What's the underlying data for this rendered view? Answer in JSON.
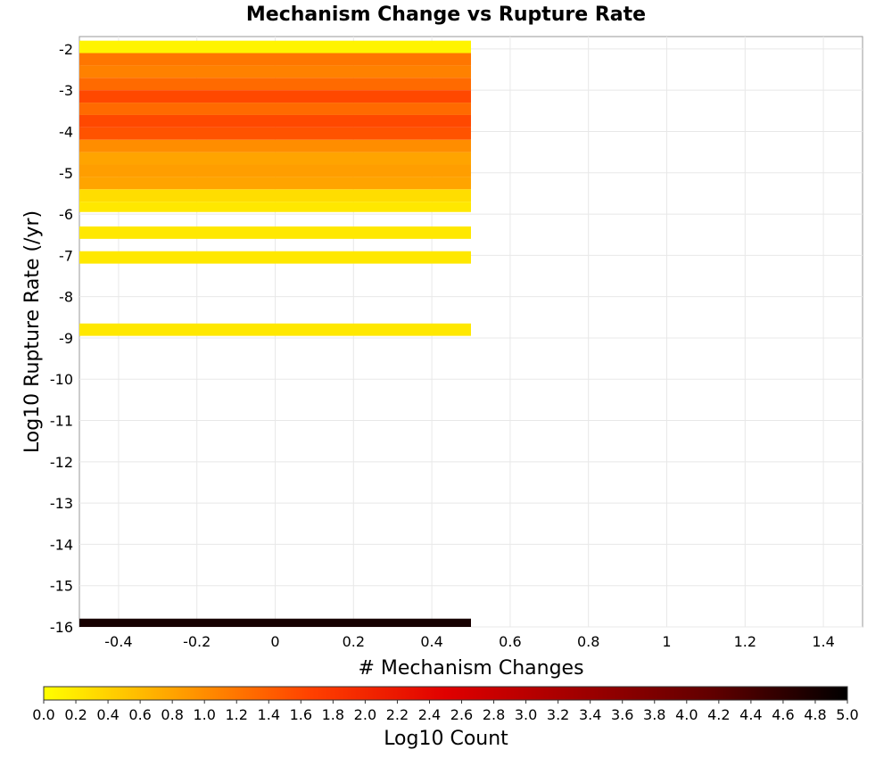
{
  "chart_data": {
    "type": "heatmap",
    "title": "Mechanism Change vs Rupture Rate",
    "xlabel": "# Mechanism Changes",
    "ylabel": "Log10 Rupture Rate (/yr)",
    "xlim": [
      -0.5,
      1.5
    ],
    "ylim": [
      -16,
      -1.7
    ],
    "x_ticks": [
      "-0.4",
      "-0.2",
      "0",
      "0.2",
      "0.4",
      "0.6",
      "0.8",
      "1",
      "1.2",
      "1.4"
    ],
    "y_ticks": [
      "-2",
      "-3",
      "-4",
      "-5",
      "-6",
      "-7",
      "-8",
      "-9",
      "-10",
      "-11",
      "-12",
      "-13",
      "-14",
      "-15",
      "-16"
    ],
    "grid": true,
    "bin_x": [
      -0.5,
      0.5
    ],
    "cells": [
      {
        "x": 0,
        "y_from": -2.1,
        "y_to": -1.8,
        "log10_count": 0.1
      },
      {
        "x": 0,
        "y_from": -2.4,
        "y_to": -2.1,
        "log10_count": 1.2
      },
      {
        "x": 0,
        "y_from": -2.7,
        "y_to": -2.4,
        "log10_count": 1.1
      },
      {
        "x": 0,
        "y_from": -3.0,
        "y_to": -2.7,
        "log10_count": 1.3
      },
      {
        "x": 0,
        "y_from": -3.3,
        "y_to": -3.0,
        "log10_count": 1.6
      },
      {
        "x": 0,
        "y_from": -3.6,
        "y_to": -3.3,
        "log10_count": 1.3
      },
      {
        "x": 0,
        "y_from": -3.9,
        "y_to": -3.6,
        "log10_count": 1.6
      },
      {
        "x": 0,
        "y_from": -4.2,
        "y_to": -3.9,
        "log10_count": 1.5
      },
      {
        "x": 0,
        "y_from": -4.5,
        "y_to": -4.2,
        "log10_count": 1.0
      },
      {
        "x": 0,
        "y_from": -4.8,
        "y_to": -4.5,
        "log10_count": 0.8
      },
      {
        "x": 0,
        "y_from": -5.1,
        "y_to": -4.8,
        "log10_count": 0.85
      },
      {
        "x": 0,
        "y_from": -5.4,
        "y_to": -5.1,
        "log10_count": 0.8
      },
      {
        "x": 0,
        "y_from": -5.7,
        "y_to": -5.4,
        "log10_count": 0.3
      },
      {
        "x": 0,
        "y_from": -5.95,
        "y_to": -5.7,
        "log10_count": 0.2
      },
      {
        "x": 0,
        "y_from": -6.6,
        "y_to": -6.3,
        "log10_count": 0.2
      },
      {
        "x": 0,
        "y_from": -7.2,
        "y_to": -6.9,
        "log10_count": 0.2
      },
      {
        "x": 0,
        "y_from": -8.95,
        "y_to": -8.65,
        "log10_count": 0.2
      },
      {
        "x": 0,
        "y_from": -16.0,
        "y_to": -15.8,
        "log10_count": 4.8
      }
    ],
    "colorbar": {
      "label": "Log10 Count",
      "min": 0.0,
      "max": 5.0,
      "ticks": [
        "0.0",
        "0.2",
        "0.4",
        "0.6",
        "0.8",
        "1.0",
        "1.2",
        "1.4",
        "1.6",
        "1.8",
        "2.0",
        "2.2",
        "2.4",
        "2.6",
        "2.8",
        "3.0",
        "3.2",
        "3.4",
        "3.6",
        "3.8",
        "4.0",
        "4.2",
        "4.4",
        "4.6",
        "4.8",
        "5.0"
      ],
      "stops": [
        "#ffff00",
        "#ffa000",
        "#ff4000",
        "#e00000",
        "#a00000",
        "#600000",
        "#000000"
      ]
    }
  }
}
